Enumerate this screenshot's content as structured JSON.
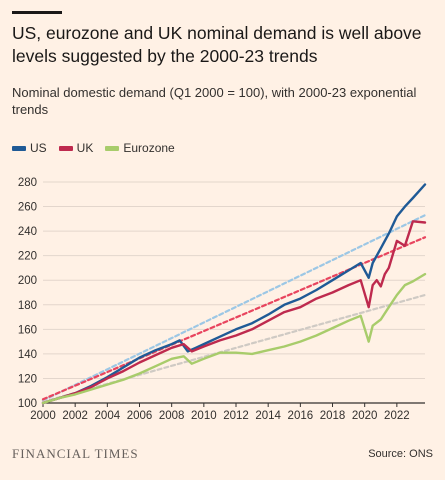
{
  "header": {
    "title": "US, eurozone and UK nominal demand is well above levels suggested by the 2000-23 trends",
    "subtitle": "Nominal domestic demand (Q1 2000 = 100), with 2000-23 exponential trends"
  },
  "legend": [
    {
      "label": "US",
      "color": "#1F5A96"
    },
    {
      "label": "UK",
      "color": "#BE2A4E"
    },
    {
      "label": "Eurozone",
      "color": "#A8CC6B"
    }
  ],
  "footer": {
    "brand": "FINANCIAL TIMES",
    "source": "Source: ONS"
  },
  "chart_data": {
    "type": "line",
    "xlim": [
      2000,
      2023.75
    ],
    "ylim": [
      100,
      280
    ],
    "xticks": [
      2000,
      2002,
      2004,
      2006,
      2008,
      2010,
      2012,
      2014,
      2016,
      2018,
      2020,
      2022
    ],
    "yticks": [
      100,
      120,
      140,
      160,
      180,
      200,
      220,
      240,
      260,
      280
    ],
    "grid": "horizontal",
    "legend_position": "top-left",
    "series": [
      {
        "name": "US",
        "color": "#1F5A96",
        "x": [
          2000,
          2001,
          2002,
          2003,
          2004,
          2005,
          2006,
          2007,
          2008,
          2008.5,
          2009,
          2009.5,
          2010,
          2011,
          2012,
          2013,
          2014,
          2015,
          2016,
          2017,
          2018,
          2019,
          2019.75,
          2020.25,
          2020.5,
          2021,
          2021.5,
          2022,
          2022.5,
          2023,
          2023.75
        ],
        "values": [
          100,
          104,
          108,
          114,
          121,
          129,
          137,
          143,
          148,
          151,
          142,
          145,
          148,
          154,
          160,
          165,
          172,
          180,
          185,
          192,
          200,
          208,
          214,
          202,
          214,
          226,
          238,
          252,
          260,
          267,
          278
        ]
      },
      {
        "name": "UK",
        "color": "#BE2A4E",
        "x": [
          2000,
          2001,
          2002,
          2003,
          2004,
          2005,
          2006,
          2007,
          2008,
          2008.75,
          2009.25,
          2010,
          2011,
          2012,
          2013,
          2014,
          2015,
          2016,
          2017,
          2018,
          2019,
          2019.75,
          2020.25,
          2020.5,
          2020.75,
          2021,
          2021.25,
          2021.5,
          2022,
          2022.5,
          2023,
          2023.75
        ],
        "values": [
          100,
          104,
          108,
          113,
          120,
          126,
          133,
          139,
          145,
          148,
          142,
          146,
          151,
          155,
          160,
          167,
          174,
          178,
          185,
          190,
          196,
          200,
          178,
          196,
          200,
          195,
          205,
          210,
          232,
          228,
          248,
          247
        ]
      },
      {
        "name": "Eurozone",
        "color": "#A8CC6B",
        "x": [
          2000,
          2001,
          2002,
          2003,
          2004,
          2005,
          2006,
          2007,
          2008,
          2008.75,
          2009.25,
          2010,
          2011,
          2012,
          2013,
          2014,
          2015,
          2016,
          2017,
          2018,
          2019,
          2019.75,
          2020.25,
          2020.5,
          2021,
          2021.5,
          2022,
          2022.5,
          2023,
          2023.75
        ],
        "values": [
          100,
          104,
          107,
          111,
          115,
          119,
          124,
          130,
          136,
          138,
          132,
          136,
          141,
          141,
          140,
          143,
          146,
          150,
          155,
          161,
          167,
          171,
          150,
          163,
          168,
          178,
          188,
          196,
          199,
          205
        ]
      },
      {
        "name": "US trend",
        "color": "#9CC7E5",
        "dashed": true,
        "x": [
          2000,
          2023.75
        ],
        "values": [
          102,
          253
        ]
      },
      {
        "name": "UK trend",
        "color": "#E8445E",
        "dashed": true,
        "x": [
          2000,
          2023.75
        ],
        "values": [
          103,
          235
        ]
      },
      {
        "name": "Eurozone trend",
        "color": "#CFCAC4",
        "dashed": true,
        "x": [
          2000,
          2023.75
        ],
        "values": [
          101,
          188
        ]
      }
    ]
  }
}
